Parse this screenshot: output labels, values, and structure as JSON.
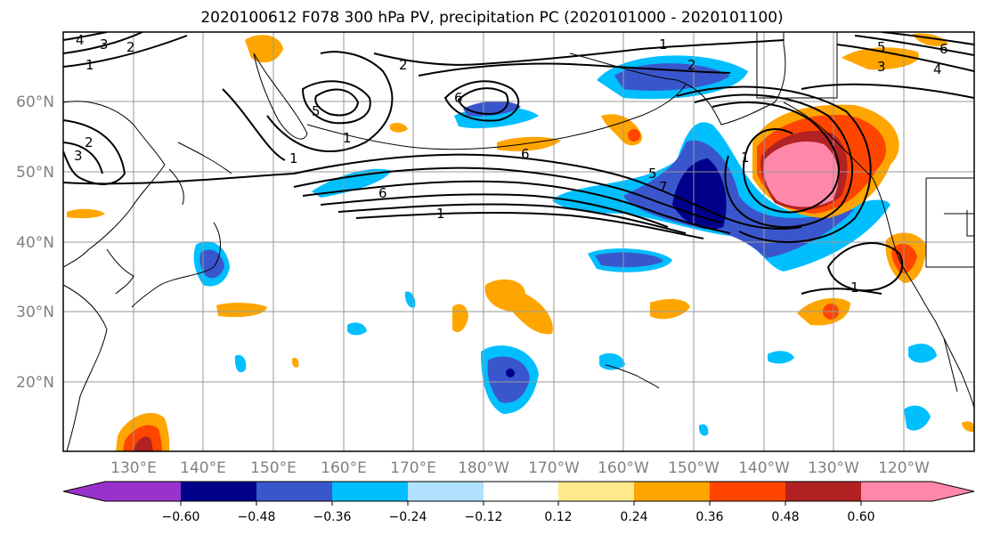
{
  "title": "2020100612 F078 300 hPa PV, precipitation PC (2020101000 - 2020101100)",
  "map": {
    "lat_labels": [
      "60°N",
      "50°N",
      "40°N",
      "30°N",
      "20°N"
    ],
    "lon_labels": [
      "130°E",
      "140°E",
      "150°E",
      "160°E",
      "170°E",
      "180°W",
      "170°W",
      "160°W",
      "150°W",
      "140°W",
      "130°W",
      "120°W"
    ],
    "contour_labels": [
      "4",
      "3",
      "2",
      "1",
      "2",
      "1",
      "2",
      "2",
      "1",
      "1",
      "3",
      "5",
      "6",
      "6",
      "1",
      "6",
      "5",
      "7",
      "1",
      "1",
      "5",
      "3",
      "4",
      "6"
    ]
  },
  "colorbar": {
    "labels": [
      "−0.60",
      "−0.48",
      "−0.36",
      "−0.24",
      "−0.12",
      "0.12",
      "0.24",
      "0.36",
      "0.48",
      "0.60"
    ],
    "colors": [
      "#9932cc",
      "#00008b",
      "#3a56cc",
      "#00bfff",
      "#b0e2ff",
      "#ffffff",
      "#ffe98a",
      "#ffa500",
      "#ff4500",
      "#b22222",
      "#ff88aa"
    ]
  }
}
